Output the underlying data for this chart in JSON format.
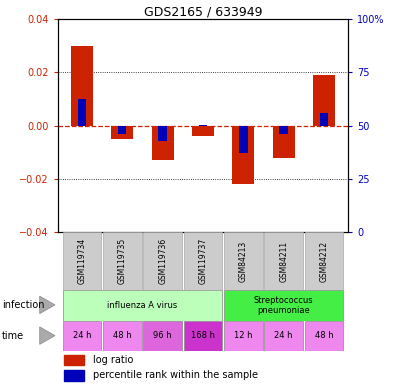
{
  "title": "GDS2165 / 633949",
  "samples": [
    "GSM119734",
    "GSM119735",
    "GSM119736",
    "GSM119737",
    "GSM84213",
    "GSM84211",
    "GSM84212"
  ],
  "log_ratio": [
    0.03,
    -0.005,
    -0.013,
    -0.004,
    -0.022,
    -0.012,
    0.019
  ],
  "percentile_rank": [
    62.5,
    46.0,
    43.0,
    50.5,
    37.0,
    46.0,
    56.0
  ],
  "ylim_left": [
    -0.04,
    0.04
  ],
  "ylim_right": [
    0,
    100
  ],
  "yticks_left": [
    -0.04,
    -0.02,
    0,
    0.02,
    0.04
  ],
  "yticks_right": [
    0,
    25,
    50,
    75,
    100
  ],
  "bar_color_red": "#cc2200",
  "bar_color_blue": "#0000bb",
  "zero_line_color": "#cc2200",
  "dotted_line_color": "#000000",
  "infection_groups": [
    {
      "label": "influenza A virus",
      "start": 0,
      "end": 4,
      "color": "#bbffbb"
    },
    {
      "label": "Streptococcus\npneumoniae",
      "start": 4,
      "end": 7,
      "color": "#44ee44"
    }
  ],
  "time_labels": [
    "24 h",
    "48 h",
    "96 h",
    "168 h",
    "12 h",
    "24 h",
    "48 h"
  ],
  "time_colors": [
    "#ee88ee",
    "#ee88ee",
    "#dd66dd",
    "#cc33cc",
    "#ee88ee",
    "#ee88ee",
    "#ee88ee"
  ],
  "sample_box_color": "#cccccc",
  "legend_red_label": "log ratio",
  "legend_blue_label": "percentile rank within the sample",
  "bar_width": 0.55
}
